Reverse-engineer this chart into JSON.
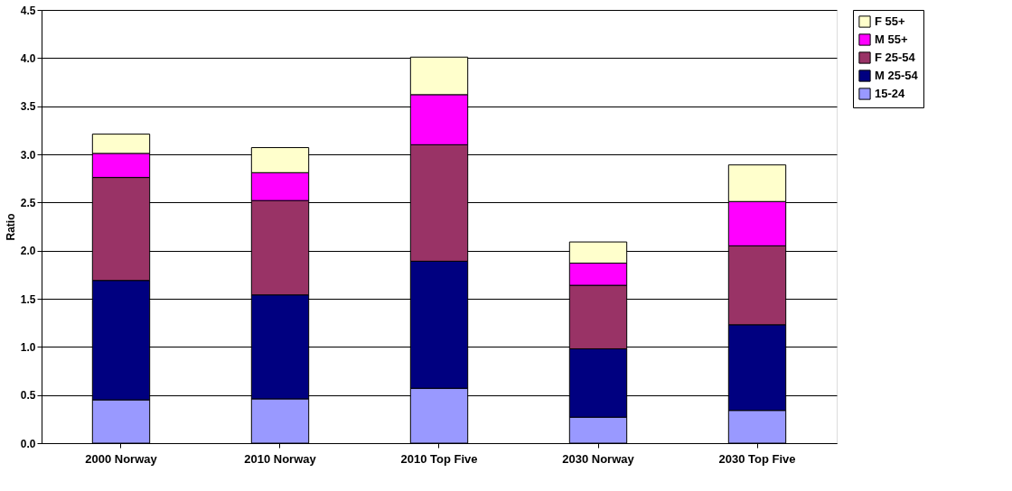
{
  "chart_data": {
    "type": "bar",
    "stacked": true,
    "ylabel": "Ratio",
    "categories": [
      "2000 Norway",
      "2010 Norway",
      "2010 Top Five",
      "2030 Norway",
      "2030 Top Five"
    ],
    "series": [
      {
        "name": "15-24",
        "color": "#9999ff",
        "values": [
          0.45,
          0.46,
          0.57,
          0.27,
          0.34
        ]
      },
      {
        "name": "M 25-54",
        "color": "#000080",
        "values": [
          1.24,
          1.08,
          1.32,
          0.71,
          0.89
        ]
      },
      {
        "name": "F 25-54",
        "color": "#993366",
        "values": [
          1.07,
          0.98,
          1.21,
          0.66,
          0.82
        ]
      },
      {
        "name": "M 55+",
        "color": "#ff00ff",
        "values": [
          0.25,
          0.29,
          0.52,
          0.23,
          0.46
        ]
      },
      {
        "name": "F 55+",
        "color": "#ffffcc",
        "values": [
          0.2,
          0.26,
          0.39,
          0.22,
          0.38
        ]
      }
    ],
    "ylim": [
      0,
      4.5
    ],
    "yticks": [
      {
        "value": 0,
        "label": "0.0"
      },
      {
        "value": 0.5,
        "label": "0.5"
      },
      {
        "value": 1,
        "label": "1.0"
      },
      {
        "value": 1.5,
        "label": "1.5"
      },
      {
        "value": 2,
        "label": "2.0"
      },
      {
        "value": 2.5,
        "label": "2.5"
      },
      {
        "value": 3,
        "label": "3.0"
      },
      {
        "value": 3.5,
        "label": "3.5"
      },
      {
        "value": 4,
        "label": "4.0"
      },
      {
        "value": 4.5,
        "label": "4.5"
      }
    ],
    "grid": "y",
    "legend": "right"
  }
}
